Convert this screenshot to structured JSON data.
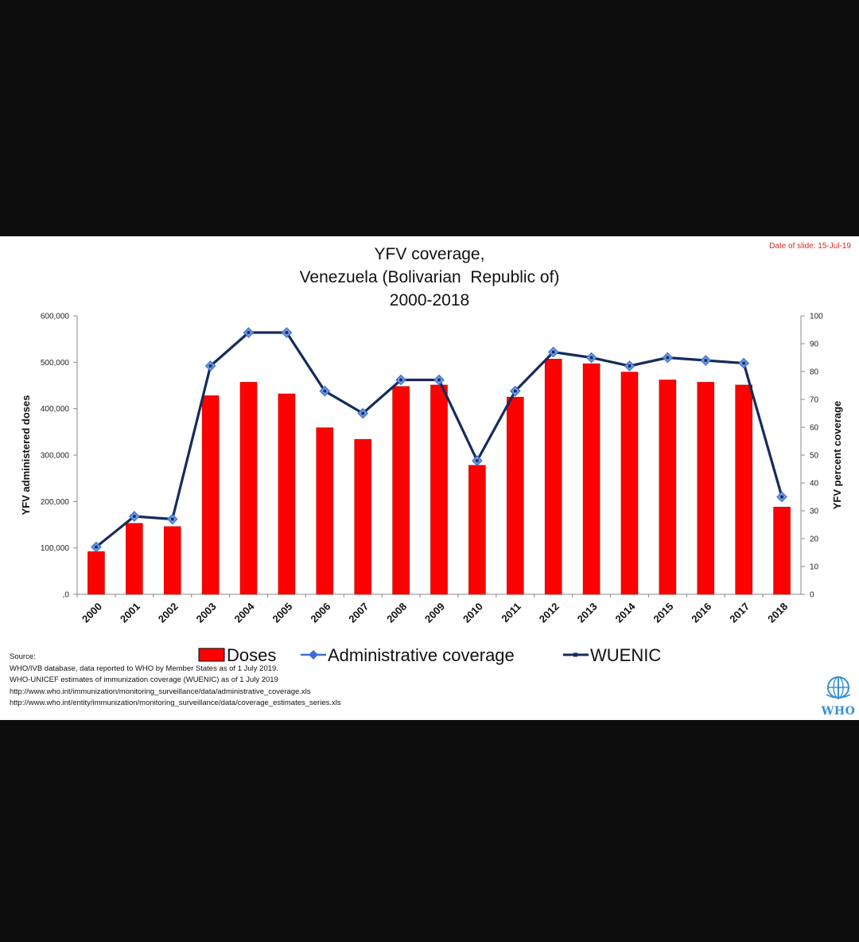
{
  "slide": {
    "title_lines": [
      "YFV coverage,",
      "Venezuela (Bolivarian  Republic of)",
      "2000-2018"
    ],
    "date_of_slide": "Date of slide: 15-Jul-19",
    "source_lines": [
      "Source:",
      "WHO/IVB database, data reported to WHO by Member States as of 1 July 2019.",
      "WHO-UNICEF estimates of immunization coverage (WUENIC) as of 1 July 2019",
      "http://www.who.int/immunization/monitoring_surveillance/data/administrative_coverage.xls",
      "http://www.who.int/entity/immunization/monitoring_surveillance/data/coverage_estimates_series.xls"
    ],
    "logo_text": "WHO"
  },
  "chart_data": {
    "type": "bar",
    "title": "YFV coverage, Venezuela (Bolivarian  Republic of) 2000-2018",
    "categories": [
      "2000",
      "2001",
      "2002",
      "2003",
      "2004",
      "2005",
      "2006",
      "2007",
      "2008",
      "2009",
      "2010",
      "2011",
      "2012",
      "2013",
      "2014",
      "2015",
      "2016",
      "2017",
      "2018"
    ],
    "ylabel": "YFV administered doses",
    "y2label": "YFV percent coverage",
    "ylim": [
      0,
      600000
    ],
    "y2lim": [
      0,
      100
    ],
    "y_ticks": [
      "600,000",
      "500,000",
      "400,000",
      "300,000",
      "200,000",
      "100,000",
      ",0"
    ],
    "y2_ticks": [
      "100",
      "90",
      "80",
      "70",
      "60",
      "50",
      "40",
      "30",
      "20",
      "10",
      "0"
    ],
    "legend_position": "bottom",
    "series": [
      {
        "name": "Doses",
        "kind": "bar",
        "axis": "left",
        "color": "#ff0000",
        "values": [
          92000,
          153000,
          146000,
          428000,
          457000,
          432000,
          359000,
          334000,
          448000,
          451000,
          278000,
          425000,
          507000,
          497000,
          479000,
          462000,
          457000,
          451000,
          188000
        ]
      },
      {
        "name": "Administrative coverage",
        "kind": "line",
        "axis": "right",
        "color": "#3b6fd6",
        "values": [
          17,
          28,
          27,
          82,
          94,
          94,
          73,
          65,
          77,
          77,
          48,
          73,
          87,
          85,
          82,
          85,
          84,
          83,
          35
        ]
      },
      {
        "name": "WUENIC",
        "kind": "line",
        "axis": "right",
        "color": "#142c5c",
        "values": [
          17,
          28,
          27,
          82,
          94,
          94,
          73,
          65,
          77,
          77,
          48,
          73,
          87,
          85,
          82,
          85,
          84,
          83,
          35
        ]
      }
    ]
  }
}
